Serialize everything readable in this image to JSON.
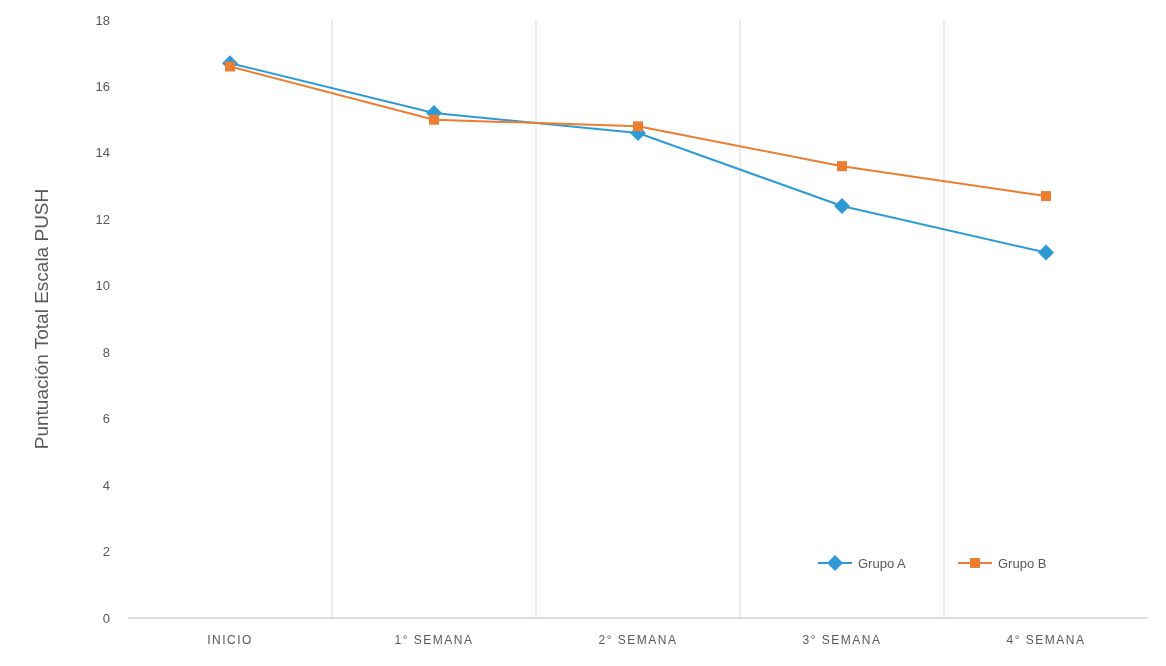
{
  "chart_data": {
    "type": "line",
    "ylabel": "Puntuación Total Escala PUSH",
    "categories": [
      "INICIO",
      "1° SEMANA",
      "2° SEMANA",
      "3° SEMANA",
      "4° SEMANA"
    ],
    "series": [
      {
        "name": "Grupo A",
        "color": "#2e9bd6",
        "marker": "diamond",
        "values": [
          16.7,
          15.2,
          14.6,
          12.4,
          11.0
        ]
      },
      {
        "name": "Grupo B",
        "color": "#ed7d31",
        "marker": "square",
        "values": [
          16.6,
          15.0,
          14.8,
          13.6,
          12.7
        ]
      }
    ],
    "ylim": [
      0,
      18
    ],
    "yticks": [
      0,
      2,
      4,
      6,
      8,
      10,
      12,
      14,
      16,
      18
    ],
    "grid": "x",
    "legend": "bottom right"
  }
}
